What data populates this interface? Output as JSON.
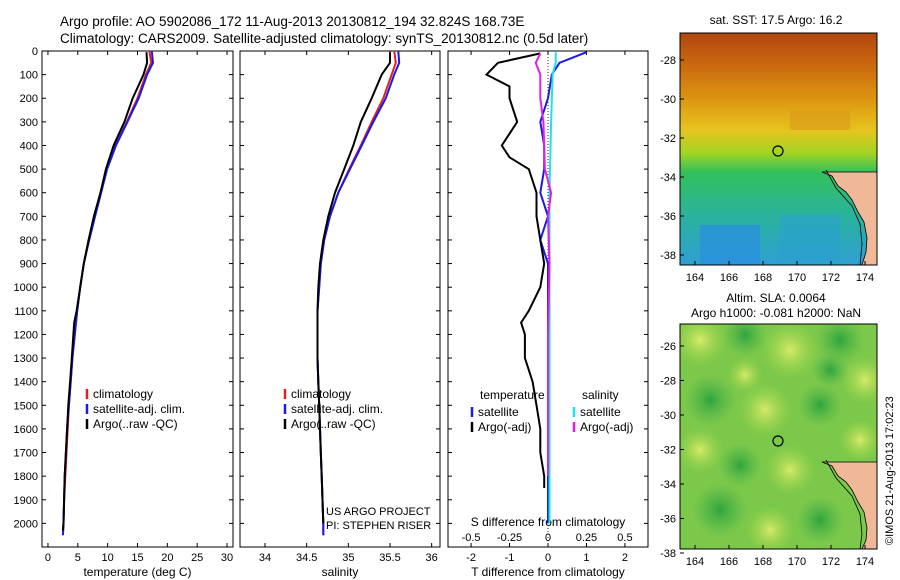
{
  "header": {
    "title_line1": "Argo profile: AO 5902086_172 11-Aug-2013 20130812_194 32.824S 168.73E",
    "title_line2": "Climatology: CARS2009. Satellite-adjusted climatology: synTS_20130812.nc (0.5d later)"
  },
  "colors": {
    "climatology": "#e02020",
    "satellite": "#1a1ae6",
    "argo": "#000000",
    "cyan": "#20e0e8",
    "magenta": "#e020e0"
  },
  "chart_data": [
    {
      "type": "line",
      "xlabel": "temperature (deg C)",
      "ylim": [
        2100,
        0
      ],
      "xlim": [
        -1,
        31
      ],
      "xticks": [
        0,
        5,
        10,
        15,
        20,
        25,
        30
      ],
      "yticks": [
        0,
        100,
        200,
        300,
        400,
        500,
        600,
        700,
        800,
        900,
        1000,
        1100,
        1200,
        1300,
        1400,
        1500,
        1600,
        1700,
        1800,
        1900,
        2000
      ],
      "legend": [
        "climatology",
        "satellite-adj. clim.",
        "Argo(..raw -QC)"
      ],
      "series": [
        {
          "name": "climatology",
          "color": "#e02020",
          "points": [
            [
              17.0,
              0
            ],
            [
              17.3,
              50
            ],
            [
              16.4,
              100
            ],
            [
              15.0,
              200
            ],
            [
              13.2,
              300
            ],
            [
              11.3,
              400
            ],
            [
              9.8,
              500
            ],
            [
              8.8,
              600
            ],
            [
              7.8,
              700
            ],
            [
              6.8,
              800
            ],
            [
              6.0,
              900
            ],
            [
              5.4,
              1000
            ],
            [
              4.9,
              1100
            ],
            [
              4.5,
              1200
            ],
            [
              4.1,
              1300
            ],
            [
              3.8,
              1400
            ],
            [
              3.5,
              1500
            ],
            [
              3.3,
              1600
            ],
            [
              3.1,
              1700
            ],
            [
              2.9,
              1800
            ],
            [
              2.7,
              1900
            ],
            [
              2.6,
              2000
            ],
            [
              2.5,
              2050
            ]
          ]
        },
        {
          "name": "satellite-adj. clim.",
          "color": "#1a1ae6",
          "points": [
            [
              17.4,
              0
            ],
            [
              17.6,
              50
            ],
            [
              16.6,
              100
            ],
            [
              15.2,
              200
            ],
            [
              13.3,
              300
            ],
            [
              11.4,
              400
            ],
            [
              9.9,
              500
            ],
            [
              8.9,
              600
            ],
            [
              7.9,
              700
            ],
            [
              6.9,
              800
            ],
            [
              6.0,
              900
            ],
            [
              5.4,
              1000
            ],
            [
              4.9,
              1100
            ],
            [
              4.5,
              1200
            ],
            [
              4.1,
              1300
            ],
            [
              3.8,
              1400
            ],
            [
              3.5,
              1500
            ],
            [
              3.2,
              1600
            ],
            [
              3.0,
              1700
            ],
            [
              2.8,
              1800
            ],
            [
              2.7,
              1900
            ],
            [
              2.6,
              2000
            ],
            [
              2.5,
              2050
            ]
          ]
        },
        {
          "name": "Argo(..raw -QC)",
          "color": "#000000",
          "points": [
            [
              16.5,
              5
            ],
            [
              16.6,
              50
            ],
            [
              16.0,
              100
            ],
            [
              14.2,
              200
            ],
            [
              12.8,
              300
            ],
            [
              11.0,
              400
            ],
            [
              9.7,
              500
            ],
            [
              8.8,
              600
            ],
            [
              7.7,
              700
            ],
            [
              6.8,
              800
            ],
            [
              6.0,
              900
            ],
            [
              5.4,
              1000
            ],
            [
              4.8,
              1100
            ],
            [
              4.4,
              1150
            ],
            [
              4.0,
              1300
            ],
            [
              3.7,
              1400
            ],
            [
              3.4,
              1500
            ],
            [
              3.2,
              1600
            ],
            [
              3.0,
              1700
            ],
            [
              2.8,
              1800
            ],
            [
              2.7,
              1900
            ],
            [
              2.6,
              2000
            ],
            [
              2.5,
              2030
            ]
          ]
        }
      ]
    },
    {
      "type": "line",
      "xlabel": "salinity",
      "ylim": [
        2100,
        0
      ],
      "xlim": [
        33.7,
        36.1
      ],
      "xticks": [
        34,
        34.5,
        35,
        35.5,
        36
      ],
      "legend": [
        "climatology",
        "satellite-adj. clim.",
        "Argo(..raw -QC)"
      ],
      "annotation": [
        "US ARGO PROJECT",
        "PI: STEPHEN RISER"
      ],
      "series": [
        {
          "name": "climatology",
          "color": "#e02020",
          "points": [
            [
              35.55,
              0
            ],
            [
              35.57,
              50
            ],
            [
              35.52,
              100
            ],
            [
              35.42,
              200
            ],
            [
              35.28,
              300
            ],
            [
              35.15,
              400
            ],
            [
              35.01,
              500
            ],
            [
              34.88,
              600
            ],
            [
              34.78,
              700
            ],
            [
              34.71,
              800
            ],
            [
              34.67,
              900
            ],
            [
              34.65,
              1000
            ],
            [
              34.63,
              1100
            ],
            [
              34.63,
              1200
            ],
            [
              34.63,
              1300
            ],
            [
              34.64,
              1400
            ],
            [
              34.65,
              1500
            ],
            [
              34.66,
              1600
            ],
            [
              34.67,
              1700
            ],
            [
              34.68,
              1800
            ],
            [
              34.69,
              1900
            ],
            [
              34.7,
              2000
            ],
            [
              34.7,
              2050
            ]
          ]
        },
        {
          "name": "satellite-adj. clim.",
          "color": "#1a1ae6",
          "points": [
            [
              35.6,
              0
            ],
            [
              35.61,
              50
            ],
            [
              35.55,
              100
            ],
            [
              35.45,
              200
            ],
            [
              35.3,
              300
            ],
            [
              35.16,
              400
            ],
            [
              35.02,
              500
            ],
            [
              34.88,
              600
            ],
            [
              34.78,
              700
            ],
            [
              34.71,
              800
            ],
            [
              34.67,
              900
            ],
            [
              34.65,
              1000
            ],
            [
              34.63,
              1100
            ],
            [
              34.63,
              1200
            ],
            [
              34.63,
              1300
            ],
            [
              34.64,
              1400
            ],
            [
              34.65,
              1500
            ],
            [
              34.66,
              1600
            ],
            [
              34.67,
              1700
            ],
            [
              34.68,
              1800
            ],
            [
              34.69,
              1900
            ],
            [
              34.7,
              2000
            ],
            [
              34.7,
              2050
            ]
          ]
        },
        {
          "name": "Argo(..raw -QC)",
          "color": "#000000",
          "points": [
            [
              35.5,
              5
            ],
            [
              35.5,
              50
            ],
            [
              35.4,
              100
            ],
            [
              35.28,
              200
            ],
            [
              35.15,
              300
            ],
            [
              35.06,
              400
            ],
            [
              34.95,
              500
            ],
            [
              34.84,
              600
            ],
            [
              34.76,
              700
            ],
            [
              34.7,
              800
            ],
            [
              34.66,
              900
            ],
            [
              34.64,
              1000
            ],
            [
              34.63,
              1100
            ],
            [
              34.63,
              1200
            ],
            [
              34.63,
              1300
            ],
            [
              34.64,
              1400
            ],
            [
              34.65,
              1500
            ],
            [
              34.66,
              1600
            ],
            [
              34.67,
              1700
            ],
            [
              34.68,
              1800
            ],
            [
              34.69,
              1900
            ],
            [
              34.7,
              2000
            ]
          ]
        }
      ]
    },
    {
      "type": "line",
      "xlabel": "T difference from climatology",
      "x2label": "S difference from climatology",
      "ylim": [
        2100,
        0
      ],
      "xlim": [
        -2.6,
        2.6
      ],
      "x2lim": [
        -0.65,
        0.65
      ],
      "xticks": [
        -2,
        -1,
        0,
        1,
        2
      ],
      "x2ticks": [
        -0.5,
        -0.25,
        0,
        0.25,
        0.5
      ],
      "legend_left_title": "temperature",
      "legend_right_title": "salinity",
      "legend": [
        "satellite",
        "Argo(-adj)",
        "satellite",
        "Argo(-adj)"
      ],
      "series": [
        {
          "name": "satellite",
          "group": "temperature",
          "color": "#1a1ae6",
          "points": [
            [
              1.0,
              5
            ],
            [
              0.3,
              50
            ],
            [
              0.1,
              100
            ],
            [
              0.0,
              200
            ],
            [
              -0.2,
              300
            ],
            [
              -0.1,
              400
            ],
            [
              -0.1,
              500
            ],
            [
              -0.2,
              600
            ],
            [
              0.0,
              700
            ],
            [
              -0.2,
              800
            ],
            [
              0.0,
              900
            ],
            [
              0.0,
              1000
            ],
            [
              0.0,
              1200
            ],
            [
              0.0,
              1500
            ],
            [
              0.0,
              1800
            ],
            [
              0.0,
              2000
            ]
          ]
        },
        {
          "name": "Argo(-adj)",
          "group": "temperature",
          "color": "#000000",
          "points": [
            [
              -0.2,
              10
            ],
            [
              -1.3,
              50
            ],
            [
              -1.6,
              100
            ],
            [
              -1.0,
              150
            ],
            [
              -1.0,
              200
            ],
            [
              -0.8,
              300
            ],
            [
              -1.2,
              400
            ],
            [
              -1.0,
              450
            ],
            [
              -0.5,
              500
            ],
            [
              -0.3,
              600
            ],
            [
              -0.3,
              700
            ],
            [
              -0.2,
              800
            ],
            [
              -0.1,
              900
            ],
            [
              -0.2,
              1000
            ],
            [
              -0.5,
              1100
            ],
            [
              -0.7,
              1150
            ],
            [
              -0.6,
              1200
            ],
            [
              -0.6,
              1300
            ],
            [
              -0.4,
              1400
            ],
            [
              -0.3,
              1500
            ],
            [
              -0.2,
              1600
            ],
            [
              -0.2,
              1700
            ],
            [
              -0.1,
              1800
            ],
            [
              -0.1,
              1850
            ]
          ]
        },
        {
          "name": "satellite",
          "group": "salinity",
          "color": "#20e0e8",
          "points": [
            [
              0.05,
              5
            ],
            [
              0.05,
              50
            ],
            [
              0.03,
              100
            ],
            [
              0.02,
              300
            ],
            [
              0.01,
              600
            ],
            [
              0.01,
              900
            ],
            [
              0.01,
              1200
            ],
            [
              0.01,
              1500
            ],
            [
              0.01,
              1800
            ],
            [
              0.01,
              2000
            ]
          ]
        },
        {
          "name": "Argo(-adj)",
          "group": "salinity",
          "color": "#e020e0",
          "points": [
            [
              -0.05,
              10
            ],
            [
              -0.08,
              50
            ],
            [
              -0.05,
              100
            ],
            [
              -0.05,
              200
            ],
            [
              -0.03,
              300
            ],
            [
              -0.02,
              500
            ],
            [
              0.02,
              600
            ],
            [
              0.0,
              700
            ],
            [
              0.01,
              900
            ],
            [
              0.0,
              1200
            ],
            [
              0.0,
              1500
            ],
            [
              0.0,
              1800
            ]
          ]
        }
      ]
    }
  ],
  "maps": {
    "sst": {
      "title": "sat. SST: 17.5 Argo: 16.2",
      "yticks": [
        "-28",
        "-30",
        "-32",
        "-34",
        "-36",
        "-38"
      ],
      "xticks": [
        "164",
        "166",
        "168",
        "170",
        "172",
        "174"
      ]
    },
    "sla": {
      "title_line1": "Altim. SLA: 0.0064",
      "title_line2": "Argo h1000: -0.081 h2000: NaN",
      "yticks": [
        "-26",
        "-28",
        "-30",
        "-32",
        "-34",
        "-36",
        "-38"
      ],
      "xticks": [
        "164",
        "166",
        "168",
        "170",
        "172",
        "174"
      ]
    }
  },
  "footer": {
    "stamp": "©IMOS 21-Aug-2013 17:02:23"
  }
}
